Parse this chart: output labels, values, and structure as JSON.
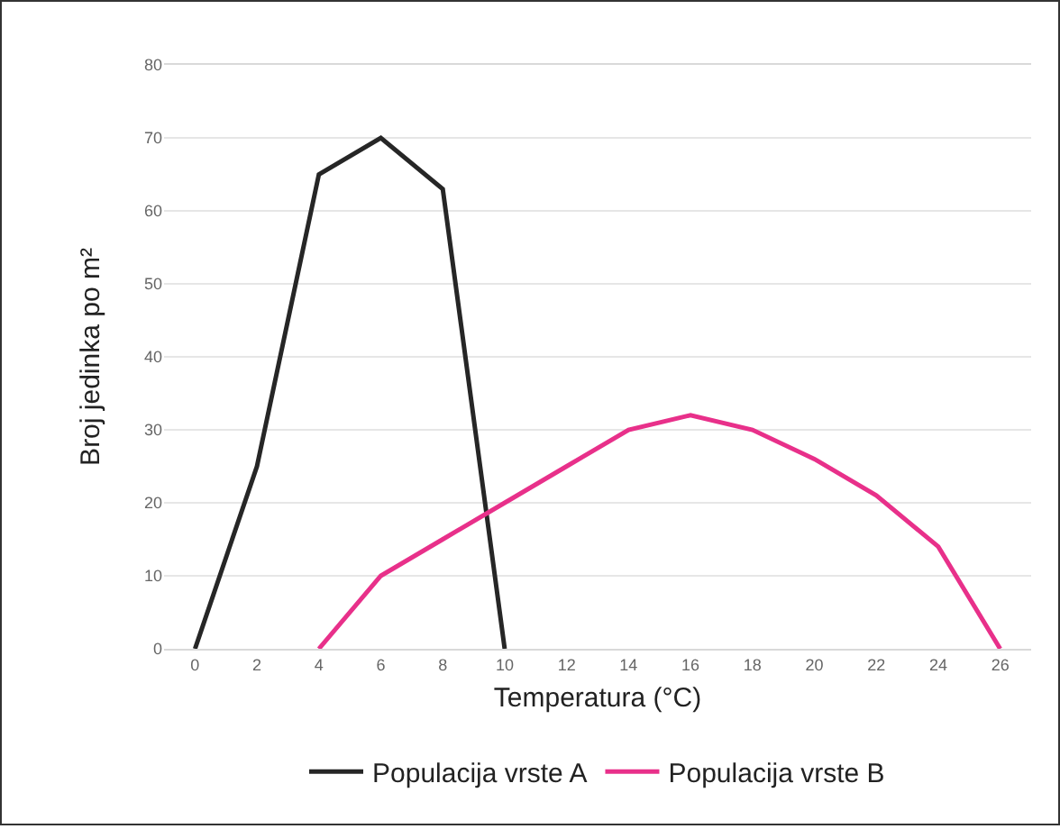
{
  "chart_data": {
    "type": "line",
    "xlabel": "Temperatura (°C)",
    "ylabel": "Broj jedinka po m²",
    "x": [
      0,
      2,
      4,
      6,
      8,
      10,
      12,
      14,
      16,
      18,
      20,
      22,
      24,
      26
    ],
    "series": [
      {
        "name": "Populacija vrste A",
        "color": "#262626",
        "values": [
          0,
          25,
          65,
          70,
          63,
          0,
          null,
          null,
          null,
          null,
          null,
          null,
          null,
          null
        ]
      },
      {
        "name": "Populacija vrste B",
        "color": "#e8308a",
        "values": [
          null,
          null,
          0,
          10,
          15,
          20,
          25,
          30,
          32,
          30,
          26,
          21,
          14,
          0
        ]
      }
    ],
    "xlim": [
      -1,
      27
    ],
    "xticks": [
      0,
      2,
      4,
      6,
      8,
      10,
      12,
      14,
      16,
      18,
      20,
      22,
      24,
      26
    ],
    "ylim": [
      0,
      80
    ],
    "yticks": [
      0,
      10,
      20,
      30,
      40,
      50,
      60,
      70,
      80
    ],
    "grid": "y",
    "legend": "bottom",
    "marker": "none",
    "line_style": "solid"
  }
}
